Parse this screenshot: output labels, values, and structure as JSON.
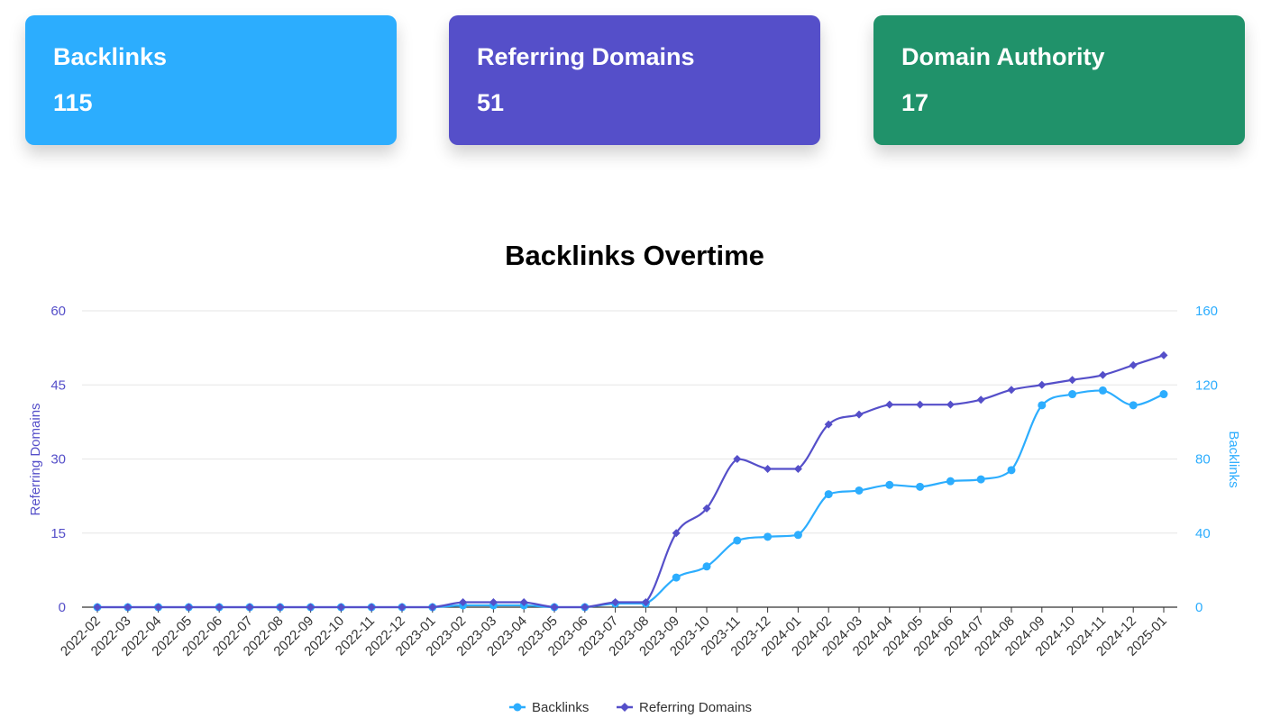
{
  "cards": [
    {
      "title": "Backlinks",
      "value": "115",
      "color": "#2CADFE"
    },
    {
      "title": "Referring Domains",
      "value": "51",
      "color": "#554FC9"
    },
    {
      "title": "Domain Authority",
      "value": "17",
      "color": "#20926A"
    }
  ],
  "chart_data": {
    "type": "line",
    "title": "Backlinks Overtime",
    "categories": [
      "2022-02",
      "2022-03",
      "2022-04",
      "2022-05",
      "2022-06",
      "2022-07",
      "2022-08",
      "2022-09",
      "2022-10",
      "2022-11",
      "2022-12",
      "2023-01",
      "2023-02",
      "2023-03",
      "2023-04",
      "2023-05",
      "2023-06",
      "2023-07",
      "2023-08",
      "2023-09",
      "2023-10",
      "2023-11",
      "2023-12",
      "2024-01",
      "2024-02",
      "2024-03",
      "2024-04",
      "2024-05",
      "2024-06",
      "2024-07",
      "2024-08",
      "2024-09",
      "2024-10",
      "2024-11",
      "2024-12",
      "2025-01"
    ],
    "series": [
      {
        "name": "Backlinks",
        "axis": "right",
        "color": "#2CADFE",
        "marker": "circle",
        "values": [
          0,
          0,
          0,
          0,
          0,
          0,
          0,
          0,
          0,
          0,
          0,
          0,
          1,
          1,
          1,
          0,
          0,
          2,
          2,
          16,
          22,
          36,
          38,
          39,
          61,
          63,
          66,
          65,
          68,
          69,
          74,
          109,
          115,
          117,
          109,
          115
        ]
      },
      {
        "name": "Referring Domains",
        "axis": "left",
        "color": "#554FC9",
        "marker": "diamond",
        "values": [
          0,
          0,
          0,
          0,
          0,
          0,
          0,
          0,
          0,
          0,
          0,
          0,
          1,
          1,
          1,
          0,
          0,
          1,
          1,
          15,
          20,
          30,
          28,
          28,
          37,
          39,
          41,
          41,
          41,
          42,
          44,
          45,
          46,
          47,
          49,
          51
        ]
      }
    ],
    "y_left": {
      "label": "Referring Domains",
      "min": 0,
      "max": 60,
      "ticks": [
        "0",
        "15",
        "30",
        "45",
        "60"
      ],
      "color": "#554FC9"
    },
    "y_right": {
      "label": "Backlinks",
      "min": 0,
      "max": 160,
      "ticks": [
        "0",
        "40",
        "80",
        "120",
        "160"
      ],
      "color": "#2CADFE"
    },
    "grid": true,
    "legend": "bottom-center"
  }
}
